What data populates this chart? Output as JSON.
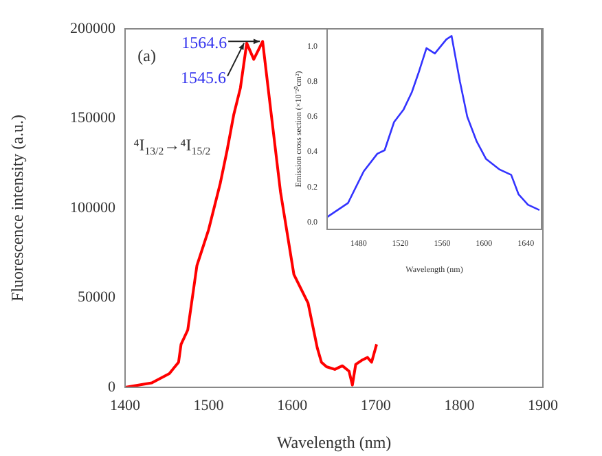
{
  "chart_data": [
    {
      "type": "line",
      "xlabel": "Wavelength (nm)",
      "ylabel": "Fluorescence intensity (a.u.)",
      "x": [
        1400,
        1432,
        1453,
        1464,
        1467,
        1475,
        1486,
        1500,
        1514,
        1522,
        1530,
        1538,
        1545.6,
        1554,
        1564.6,
        1575,
        1586,
        1602,
        1619,
        1630,
        1635,
        1641,
        1651,
        1660,
        1668,
        1672,
        1676,
        1683,
        1690,
        1695,
        1701
      ],
      "series": [
        {
          "color": "#ff0000",
          "values": [
            0,
            2500,
            7700,
            14000,
            24000,
            32000,
            68000,
            88000,
            114000,
            132000,
            152000,
            167000,
            192000,
            183000,
            193000,
            152000,
            109000,
            63000,
            47000,
            22000,
            14000,
            11500,
            10000,
            12000,
            9000,
            1300,
            12800,
            15000,
            16700,
            14000,
            24000
          ]
        }
      ],
      "xlim": [
        1400,
        1900
      ],
      "xticks": [
        1400,
        1500,
        1600,
        1700,
        1800,
        1900
      ],
      "ylim": [
        0,
        200000
      ],
      "yticks": [
        0,
        50000,
        100000,
        150000,
        200000
      ],
      "annotations": [
        "(a)",
        "⁴I$_{13/2}$→⁴I$_{15/2}$",
        {
          "text": "1564.6",
          "x": 1564.6,
          "y": 193000
        },
        {
          "text": "1545.6",
          "x": 1545.6,
          "y": 192000
        }
      ]
    },
    {
      "type": "line",
      "xlabel": "Wavelength (nm)",
      "ylabel": "Emission cross section (×10⁻²⁰cm²)",
      "x": [
        1450,
        1470,
        1485,
        1498,
        1505,
        1514,
        1523,
        1531,
        1538,
        1545,
        1553,
        1564,
        1569,
        1577,
        1584,
        1593,
        1602,
        1615,
        1626,
        1633,
        1642,
        1653
      ],
      "series": [
        {
          "color": "#3333ff",
          "values": [
            0.03,
            0.11,
            0.29,
            0.39,
            0.41,
            0.57,
            0.64,
            0.74,
            0.86,
            0.99,
            0.96,
            1.04,
            1.06,
            0.8,
            0.6,
            0.46,
            0.36,
            0.3,
            0.27,
            0.16,
            0.1,
            0.07
          ]
        }
      ],
      "xlim": [
        1450,
        1655
      ],
      "xticks": [
        1480,
        1520,
        1560,
        1600,
        1640
      ],
      "ylim": [
        -0.04,
        1.1
      ],
      "yticks": [
        {
          "value": 0,
          "label": "0.0"
        },
        {
          "value": 0.2,
          "label": "0.2"
        },
        {
          "value": 0.4,
          "label": "0.4"
        },
        {
          "value": 0.6,
          "label": "0.6"
        },
        {
          "value": 0.8,
          "label": "0.8"
        },
        {
          "value": 1,
          "label": "1.0"
        }
      ]
    }
  ]
}
